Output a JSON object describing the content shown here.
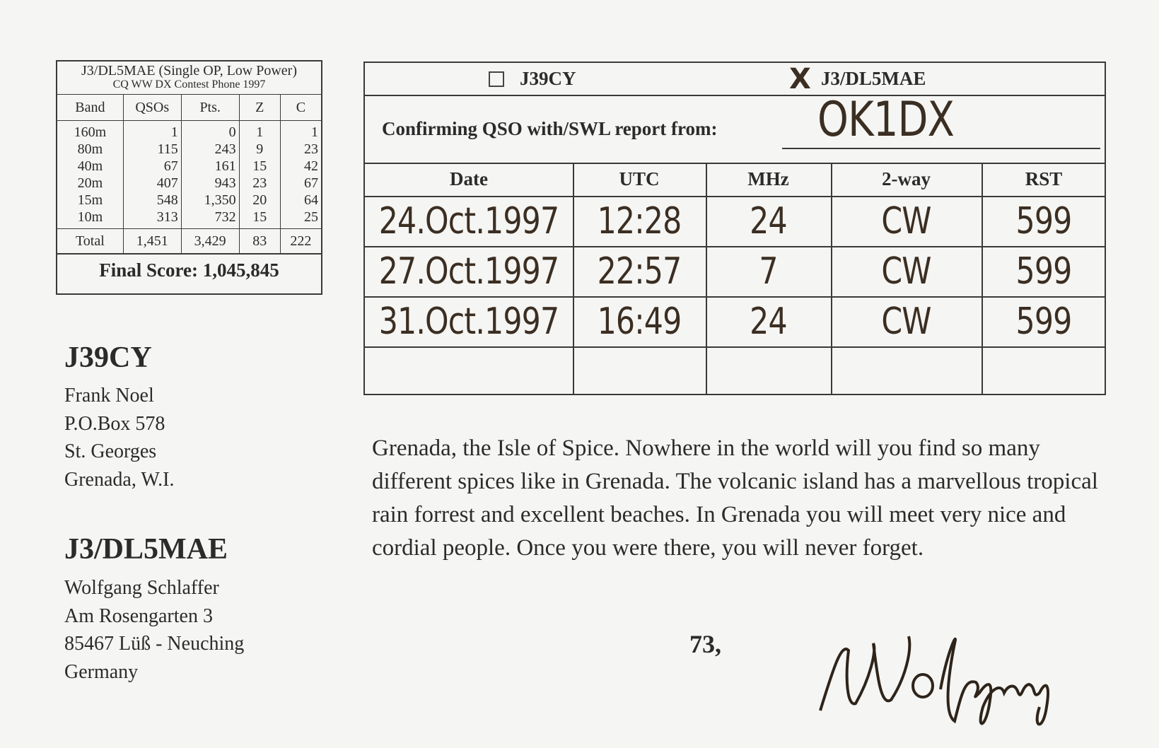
{
  "stats": {
    "title": "J3/DL5MAE  (Single OP, Low Power)",
    "subtitle": "CQ WW DX Contest Phone 1997",
    "headers": [
      "Band",
      "QSOs",
      "Pts.",
      "Z",
      "C"
    ],
    "rows": {
      "band": "160m\n80m\n40m\n20m\n15m\n10m",
      "qsos": "1\n115\n67\n407\n548\n313",
      "pts": "0\n243\n161\n943\n1,350\n732",
      "z": "1\n9\n15\n23\n20\n15",
      "c": "1\n23\n42\n67\n64\n25"
    },
    "total": [
      "Total",
      "1,451",
      "3,429",
      "83",
      "222"
    ],
    "final_score": "Final Score: 1,045,845"
  },
  "station1": {
    "call": "J39CY",
    "name": "Frank Noel",
    "line1": "P.O.Box 578",
    "line2": "St. Georges",
    "line3": "Grenada, W.I."
  },
  "station2": {
    "call": "J3/DL5MAE",
    "name": "Wolfgang Schlaffer",
    "line1": "Am Rosengarten 3",
    "line2": "85467 Lüß - Neuching",
    "line3": "Germany"
  },
  "qsl": {
    "option1": {
      "label": "J39CY",
      "checked": false
    },
    "option2": {
      "label": "J3/DL5MAE",
      "checked": true,
      "mark": "X"
    },
    "confirm_label": "Confirming QSO with/SWL report from:",
    "confirm_value": "OK1DX",
    "headers": [
      "Date",
      "UTC",
      "MHz",
      "2-way",
      "RST"
    ],
    "rows": [
      [
        "24.Oct.1997",
        "12:28",
        "24",
        "CW",
        "599"
      ],
      [
        "27.Oct.1997",
        "22:57",
        "7",
        "CW",
        "599"
      ],
      [
        "31.Oct.1997",
        "16:49",
        "24",
        "CW",
        "599"
      ]
    ]
  },
  "message": "Grenada, the Isle of Spice. Nowhere in the world will you find so many different spices like in Grenada. The volcanic island has a marvellous tropical rain forrest and excellent beaches. In Grenada you will meet very nice and cordial people. Once you were there, you will never forget.",
  "closing": "73,",
  "signature": "Wolfgang"
}
